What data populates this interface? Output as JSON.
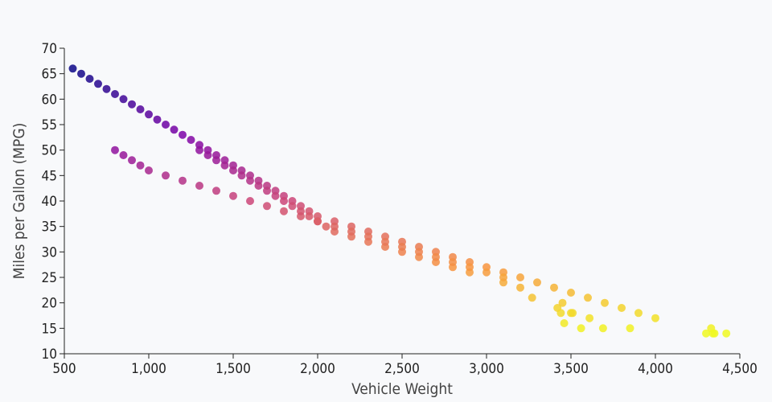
{
  "chart_data": {
    "type": "scatter",
    "title": "",
    "xlabel": "Vehicle Weight",
    "ylabel": "Miles per Gallon (MPG)",
    "xlim": [
      500,
      4500
    ],
    "ylim": [
      10,
      70
    ],
    "x_ticks": [
      500,
      1000,
      1500,
      2000,
      2500,
      3000,
      3500,
      4000,
      4500
    ],
    "x_tick_labels": [
      "500",
      "1,000",
      "1,500",
      "2,000",
      "2,500",
      "3,000",
      "3,500",
      "4,000",
      "4,500"
    ],
    "y_ticks": [
      10,
      15,
      20,
      25,
      30,
      35,
      40,
      45,
      50,
      55,
      60,
      65,
      70
    ],
    "y_tick_labels": [
      "10",
      "15",
      "20",
      "25",
      "30",
      "35",
      "40",
      "45",
      "50",
      "55",
      "60",
      "65",
      "70"
    ],
    "grid": false,
    "legend": "none",
    "color_scale": "plasma, dark blue-purple for high MPG to yellow for low MPG",
    "points": [
      [
        550,
        66
      ],
      [
        600,
        65
      ],
      [
        650,
        64
      ],
      [
        700,
        63
      ],
      [
        750,
        62
      ],
      [
        800,
        61
      ],
      [
        850,
        60
      ],
      [
        900,
        59
      ],
      [
        950,
        58
      ],
      [
        1000,
        57
      ],
      [
        1050,
        56
      ],
      [
        1100,
        55
      ],
      [
        1150,
        54
      ],
      [
        1200,
        53
      ],
      [
        1250,
        52
      ],
      [
        1300,
        51
      ],
      [
        1350,
        50
      ],
      [
        1400,
        49
      ],
      [
        1450,
        48
      ],
      [
        1500,
        47
      ],
      [
        1550,
        46
      ],
      [
        1600,
        45
      ],
      [
        1650,
        44
      ],
      [
        1700,
        43
      ],
      [
        1750,
        42
      ],
      [
        1800,
        41
      ],
      [
        1850,
        40
      ],
      [
        1900,
        39
      ],
      [
        1950,
        38
      ],
      [
        2000,
        37
      ],
      [
        2100,
        36
      ],
      [
        2200,
        35
      ],
      [
        2300,
        34
      ],
      [
        2400,
        33
      ],
      [
        2500,
        32
      ],
      [
        2600,
        31
      ],
      [
        2700,
        30
      ],
      [
        2800,
        29
      ],
      [
        2900,
        28
      ],
      [
        3000,
        27
      ],
      [
        3100,
        26
      ],
      [
        3200,
        25
      ],
      [
        3300,
        24
      ],
      [
        3400,
        23
      ],
      [
        3500,
        22
      ],
      [
        3600,
        21
      ],
      [
        3700,
        20
      ],
      [
        3800,
        19
      ],
      [
        3900,
        18
      ],
      [
        4000,
        17
      ],
      [
        800,
        50
      ],
      [
        850,
        49
      ],
      [
        900,
        48
      ],
      [
        950,
        47
      ],
      [
        1000,
        46
      ],
      [
        1100,
        45
      ],
      [
        1200,
        44
      ],
      [
        1300,
        43
      ],
      [
        1400,
        42
      ],
      [
        1500,
        41
      ],
      [
        1600,
        40
      ],
      [
        1700,
        39
      ],
      [
        1800,
        38
      ],
      [
        1900,
        37
      ],
      [
        1950,
        37
      ],
      [
        2000,
        36
      ],
      [
        2050,
        35
      ],
      [
        2100,
        34
      ],
      [
        2200,
        33
      ],
      [
        2300,
        32
      ],
      [
        2400,
        31
      ],
      [
        2500,
        30
      ],
      [
        2600,
        29
      ],
      [
        2700,
        28
      ],
      [
        2800,
        27
      ],
      [
        2900,
        26
      ],
      [
        3000,
        26
      ],
      [
        3100,
        24
      ],
      [
        3200,
        23
      ],
      [
        3270,
        21
      ],
      [
        1300,
        50
      ],
      [
        1350,
        49
      ],
      [
        1400,
        48
      ],
      [
        1450,
        47
      ],
      [
        1500,
        46
      ],
      [
        1550,
        45
      ],
      [
        1600,
        44
      ],
      [
        1650,
        43
      ],
      [
        1700,
        42
      ],
      [
        1750,
        41
      ],
      [
        1800,
        40
      ],
      [
        1850,
        39
      ],
      [
        1900,
        38
      ],
      [
        2000,
        36
      ],
      [
        2100,
        35
      ],
      [
        2200,
        34
      ],
      [
        2300,
        33
      ],
      [
        2400,
        32
      ],
      [
        2500,
        31
      ],
      [
        2600,
        30
      ],
      [
        2700,
        29
      ],
      [
        2800,
        28
      ],
      [
        2900,
        27
      ],
      [
        3100,
        25
      ],
      [
        3420,
        19
      ],
      [
        3450,
        20
      ],
      [
        3440,
        18
      ],
      [
        3460,
        16
      ],
      [
        3500,
        18
      ],
      [
        3510,
        18
      ],
      [
        3560,
        15
      ],
      [
        3610,
        17
      ],
      [
        3690,
        15
      ],
      [
        3850,
        15
      ],
      [
        4300,
        14
      ],
      [
        4330,
        15
      ],
      [
        4340,
        14
      ],
      [
        4350,
        14
      ],
      [
        4420,
        14
      ]
    ]
  }
}
